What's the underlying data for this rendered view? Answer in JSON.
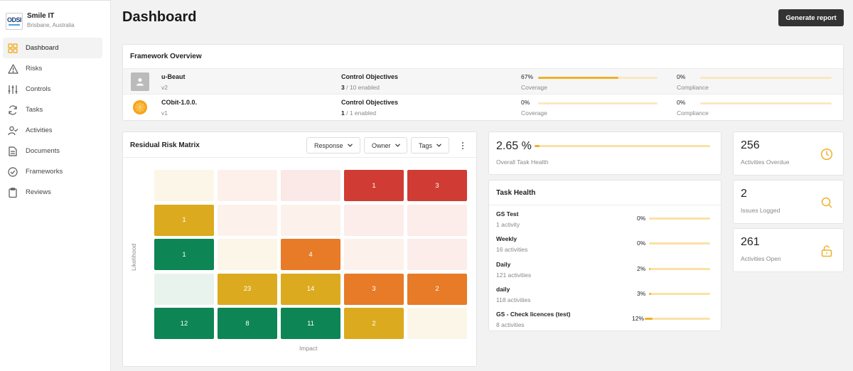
{
  "org": {
    "logo_text": "ODSI",
    "name": "Smile IT",
    "location": "Brisbane, Australia"
  },
  "nav": [
    {
      "label": "Dashboard",
      "icon": "dashboard-grid-icon",
      "active": true
    },
    {
      "label": "Risks",
      "icon": "warning-icon"
    },
    {
      "label": "Controls",
      "icon": "sliders-icon"
    },
    {
      "label": "Tasks",
      "icon": "refresh-icon"
    },
    {
      "label": "Activities",
      "icon": "user-check-icon"
    },
    {
      "label": "Documents",
      "icon": "document-icon"
    },
    {
      "label": "Frameworks",
      "icon": "check-circle-icon"
    },
    {
      "label": "Reviews",
      "icon": "clipboard-icon"
    }
  ],
  "header": {
    "title": "Dashboard",
    "generate_label": "Generate report"
  },
  "framework_overview": {
    "title": "Framework Overview",
    "rows": [
      {
        "name": "u-Beaut",
        "version": "v2",
        "objectives_label": "Control Objectives",
        "enabled": "3",
        "enabled_rest": " / 10 enabled",
        "coverage_pct": "67%",
        "coverage_value": 0.67,
        "coverage_label": "Coverage",
        "compliance_pct": "0%",
        "compliance_value": 0,
        "compliance_label": "Compliance"
      },
      {
        "name": "CObit-1.0.0.",
        "version": "v1",
        "objectives_label": "Control Objectives",
        "enabled": "1",
        "enabled_rest": " / 1 enabled",
        "coverage_pct": "0%",
        "coverage_value": 0,
        "coverage_label": "Coverage",
        "compliance_pct": "0%",
        "compliance_value": 0,
        "compliance_label": "Compliance"
      }
    ]
  },
  "risk_matrix": {
    "title": "Residual Risk Matrix",
    "filters": [
      "Response",
      "Owner",
      "Tags"
    ],
    "ylabel": "Likelihood",
    "xlabel": "Impact",
    "rows": [
      [
        {
          "v": "",
          "c": "#fbf6e8"
        },
        {
          "v": "",
          "c": "#fdf0ea"
        },
        {
          "v": "",
          "c": "#fbe9e7"
        },
        {
          "v": "1",
          "c": "#d03b33"
        },
        {
          "v": "3",
          "c": "#d03b33"
        }
      ],
      [
        {
          "v": "1",
          "c": "#dcaa1e"
        },
        {
          "v": "",
          "c": "#fdf1ec"
        },
        {
          "v": "",
          "c": "#fdf1ec"
        },
        {
          "v": "",
          "c": "#fcecea"
        },
        {
          "v": "",
          "c": "#fcecea"
        }
      ],
      [
        {
          "v": "1",
          "c": "#0d8555"
        },
        {
          "v": "",
          "c": "#fbf6e8"
        },
        {
          "v": "4",
          "c": "#e77b28"
        },
        {
          "v": "",
          "c": "#fdf1ec"
        },
        {
          "v": "",
          "c": "#fcecea"
        }
      ],
      [
        {
          "v": "",
          "c": "#e9f3ee"
        },
        {
          "v": "23",
          "c": "#dcaa1e"
        },
        {
          "v": "14",
          "c": "#dcaa1e"
        },
        {
          "v": "3",
          "c": "#e77b28"
        },
        {
          "v": "2",
          "c": "#e77b28"
        }
      ],
      [
        {
          "v": "12",
          "c": "#0d8555"
        },
        {
          "v": "8",
          "c": "#0d8555"
        },
        {
          "v": "11",
          "c": "#0d8555"
        },
        {
          "v": "2",
          "c": "#dcaa1e"
        },
        {
          "v": "",
          "c": "#fbf6e8"
        }
      ]
    ]
  },
  "overall_task_health": {
    "value": "2.65 %",
    "fraction": 0.0265,
    "label": "Overall Task Health"
  },
  "task_health": {
    "title": "Task Health",
    "rows": [
      {
        "name": "GS Test",
        "count": "1 activity",
        "pct": "0%",
        "value": 0
      },
      {
        "name": "Weekly",
        "count": "16 activities",
        "pct": "0%",
        "value": 0
      },
      {
        "name": "Daily",
        "count": "121 activities",
        "pct": "2%",
        "value": 0.02
      },
      {
        "name": "daily",
        "count": "118 activities",
        "pct": "3%",
        "value": 0.03
      },
      {
        "name": "GS - Check licences (test)",
        "count": "8 activities",
        "pct": "12%",
        "value": 0.12
      }
    ]
  },
  "stats": [
    {
      "value": "256",
      "label": "Activities Overdue",
      "icon": "clock-icon"
    },
    {
      "value": "2",
      "label": "Issues Logged",
      "icon": "search-icon"
    },
    {
      "value": "261",
      "label": "Activities Open",
      "icon": "unlock-icon"
    }
  ],
  "colors": {
    "accent": "#f0b02a",
    "accent_light": "#fbe1a6",
    "button_dark": "#333333"
  }
}
